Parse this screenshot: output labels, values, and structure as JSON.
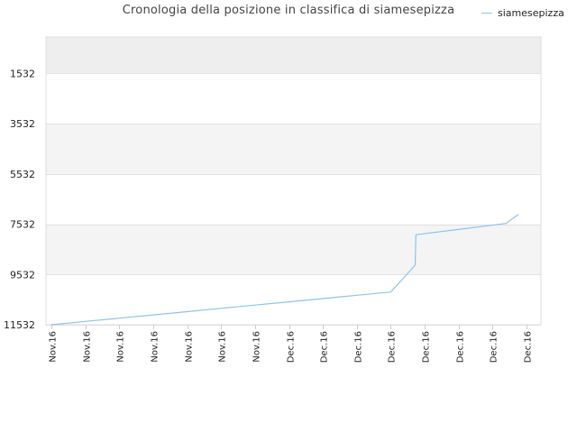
{
  "chart_data": {
    "type": "line",
    "title": "Cronologia della posizione in classifica di siamesepizza",
    "xlabel": "",
    "ylabel": "",
    "y_reversed": true,
    "ylim": [
      11532,
      1532
    ],
    "y_ticks": [
      1532,
      3532,
      5532,
      7532,
      9532,
      11532
    ],
    "x_tick_labels": [
      "Nov.16",
      "Nov.16",
      "Nov.16",
      "Nov.16",
      "Nov.16",
      "Nov.16",
      "Nov.16",
      "Dec.16",
      "Dec.16",
      "Dec.16",
      "Dec.16",
      "Dec.16",
      "Dec.16",
      "Dec.16",
      "Dec.16"
    ],
    "grid": "horizontal bands",
    "band_colors": [
      "#eeeeee",
      "#f4f4f4"
    ],
    "legend": {
      "position": "top-right"
    },
    "series": [
      {
        "name": "siamesepizza",
        "color": "#90c2ec",
        "x": [
          0,
          1,
          2,
          3,
          4,
          5,
          6,
          7,
          8,
          9,
          10,
          10.45,
          10.72,
          10.74,
          13.4,
          13.75
        ],
        "values": [
          11532,
          11400,
          11270,
          11140,
          11010,
          10880,
          10750,
          10620,
          10490,
          10360,
          10230,
          9560,
          9160,
          7950,
          7500,
          7150
        ]
      }
    ]
  }
}
